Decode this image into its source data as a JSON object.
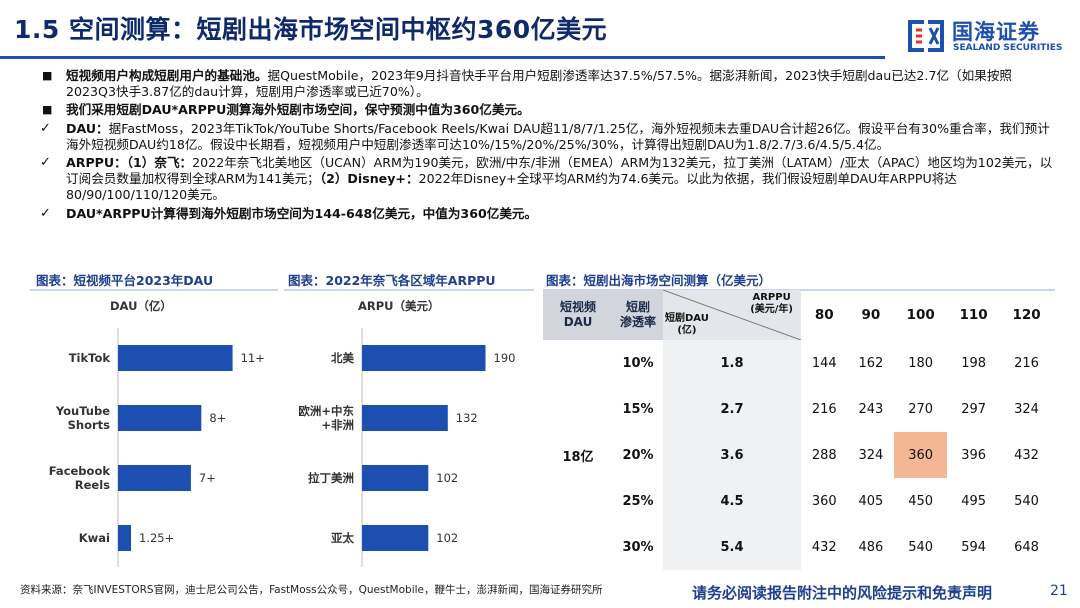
{
  "header": {
    "title": "1.5 空间测算：短剧出海市场空间中枢约360亿美元",
    "logo_cn": "国海证券",
    "logo_en": "SEALAND SECURITIES"
  },
  "body": {
    "p1_bold": "短视频用户构成短剧用户的基础池。",
    "p1_text": "据QuestMobile，2023年9月抖音快手平台用户短剧渗透率达37.5%/57.5%。据澎湃新闻，2023快手短剧dau已达2.7亿（如果按照2023Q3快手3.87亿的dau计算，短剧用户渗透率或已近70%）。",
    "p2_bold": "我们采用短剧DAU*ARPPU测算海外短剧市场空间，保守预测中值为360亿美元。",
    "c1_bold": "DAU：",
    "c1_text": "据FastMoss，2023年TikTok/YouTube Shorts/Facebook Reels/Kwai DAU超11/8/7/1.25亿，海外短视频未去重DAU合计超26亿。假设平台有30%重合率，我们预计海外短视频DAU约18亿。假设中长期看，短视频用户中短剧渗透率可达10%/15%/20%/25%/30%，计算得出短剧DAU为1.8/2.7/3.6/4.5/5.4亿。",
    "c2_bold1": "ARPPU：（1）奈飞：",
    "c2_text1": "2022年奈飞北美地区（UCAN）ARM为190美元，欧洲/中东/非洲（EMEA）ARM为132美元，拉丁美洲（LATAM）/亚太（APAC）地区均为102美元，以订阅会员数量加权得到全球ARM为141美元；",
    "c2_bold2": "（2）Disney+：",
    "c2_text2": "2022年Disney+全球平均ARM约为74.6美元。以此为依据，我们假设短剧单DAU年ARPPU将达80/90/100/110/120美元。",
    "c3_bold": "DAU*ARPPU计算得到海外短剧市场空间为144-648亿美元，中值为360亿美元。"
  },
  "colors": {
    "title": "#0e2a6b",
    "bar": "#1d4fb0",
    "highlight": "#f3b893",
    "panel_title": "#1f3f8f"
  },
  "chart_data": [
    {
      "type": "bar",
      "orientation": "horizontal",
      "title": "图表：短视频平台2023年DAU",
      "axis_title": "DAU（亿）",
      "categories": [
        "TikTok",
        "YouTube\nShorts",
        "Facebook\nReels",
        "Kwai"
      ],
      "values": [
        11,
        8,
        7,
        1.25
      ],
      "labels": [
        "11+",
        "8+",
        "7+",
        "1.25+"
      ],
      "xlim": [
        0,
        12
      ]
    },
    {
      "type": "bar",
      "orientation": "horizontal",
      "title": "图表：2022年奈飞各区域年ARPPU",
      "axis_title": "ARPU（美元）",
      "categories": [
        "北美",
        "欧洲+中东\n+非洲",
        "拉丁美洲",
        "亚太"
      ],
      "values": [
        190,
        132,
        102,
        102
      ],
      "labels": [
        "190",
        "132",
        "102",
        "102"
      ],
      "xlim": [
        0,
        200
      ]
    }
  ],
  "table": {
    "title": "图表：短剧出海市场空间测算（亿美元）",
    "h_short_video_dau": "短视频\nDAU",
    "h_penetration": "短剧\n渗透率",
    "h_drama_dau": "短剧DAU\n(亿)",
    "h_arppu": "ARPPU\n(美元/年)",
    "arppu": [
      "80",
      "90",
      "100",
      "110",
      "120"
    ],
    "short_video_dau": "18亿",
    "rows": [
      {
        "pen": "10%",
        "dau": "1.8",
        "vals": [
          "144",
          "162",
          "180",
          "198",
          "216"
        ]
      },
      {
        "pen": "15%",
        "dau": "2.7",
        "vals": [
          "216",
          "243",
          "270",
          "297",
          "324"
        ]
      },
      {
        "pen": "20%",
        "dau": "3.6",
        "vals": [
          "288",
          "324",
          "360",
          "396",
          "432"
        ]
      },
      {
        "pen": "25%",
        "dau": "4.5",
        "vals": [
          "360",
          "405",
          "450",
          "495",
          "540"
        ]
      },
      {
        "pen": "30%",
        "dau": "5.4",
        "vals": [
          "432",
          "486",
          "540",
          "594",
          "648"
        ]
      }
    ]
  },
  "footer": {
    "source": "资料来源：奈飞INVESTORS官网，迪士尼公司公告，FastMoss公众号，QuestMobile，鞭牛士，澎湃新闻，国海证券研究所",
    "disclaimer": "请务必阅读报告附注中的风险提示和免责声明",
    "page": "21"
  }
}
